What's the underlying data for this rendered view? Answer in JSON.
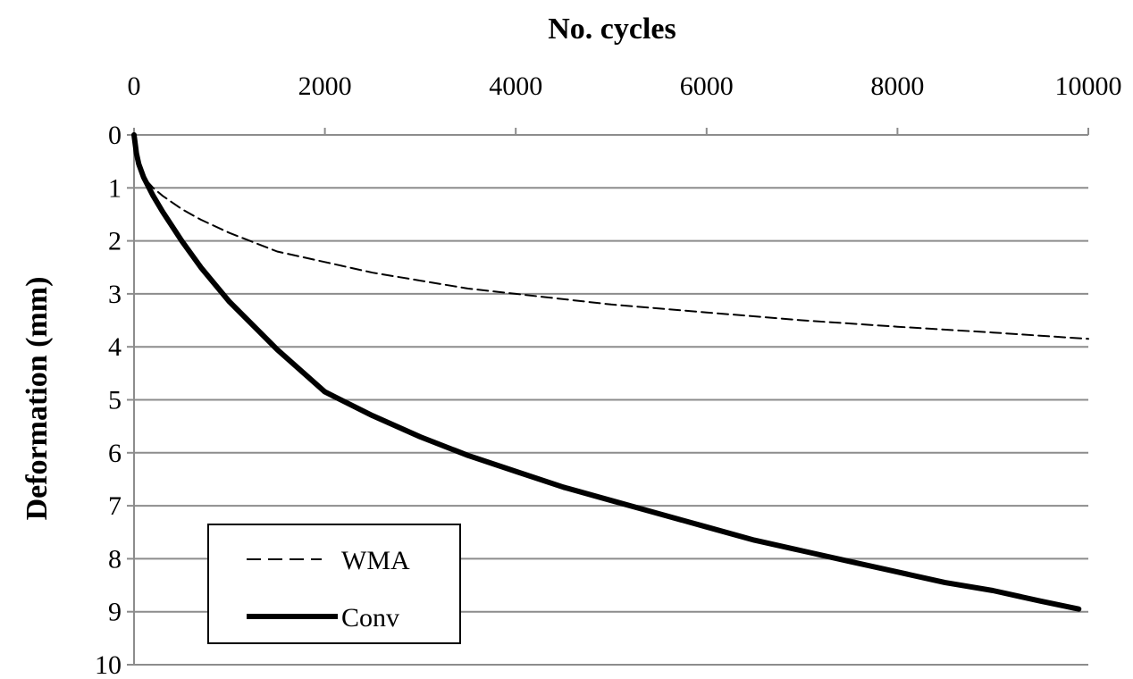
{
  "chart_data": {
    "type": "line",
    "xlabel": "No. cycles",
    "ylabel": "Deformation (mm)",
    "x_axis_position": "top",
    "y_axis_reversed": true,
    "xlim": [
      0,
      10000
    ],
    "ylim": [
      0,
      10
    ],
    "xticks": [
      0,
      2000,
      4000,
      6000,
      8000,
      10000
    ],
    "yticks": [
      0,
      1,
      2,
      3,
      4,
      5,
      6,
      7,
      8,
      9,
      10
    ],
    "grid": "horizontal",
    "legend": "bottom-left",
    "series": [
      {
        "name": "WMA",
        "style": "dashed",
        "color": "#000000",
        "x": [
          0,
          25,
          50,
          100,
          200,
          300,
          500,
          700,
          1000,
          1500,
          2000,
          2500,
          3000,
          3500,
          4000,
          5000,
          6000,
          7000,
          8000,
          9000,
          10000
        ],
        "y": [
          0,
          0.35,
          0.55,
          0.8,
          1.0,
          1.15,
          1.4,
          1.6,
          1.85,
          2.2,
          2.4,
          2.6,
          2.75,
          2.9,
          3.0,
          3.2,
          3.35,
          3.5,
          3.62,
          3.73,
          3.85
        ]
      },
      {
        "name": "Conv",
        "style": "solid-thick",
        "color": "#000000",
        "x": [
          0,
          25,
          50,
          100,
          200,
          300,
          500,
          700,
          1000,
          1500,
          2000,
          2500,
          3000,
          3500,
          4000,
          4500,
          5000,
          5500,
          6000,
          6500,
          7000,
          7500,
          8000,
          8500,
          9000,
          9500,
          9900
        ],
        "y": [
          0,
          0.35,
          0.55,
          0.8,
          1.15,
          1.45,
          2.0,
          2.5,
          3.15,
          4.05,
          4.85,
          5.3,
          5.7,
          6.05,
          6.35,
          6.65,
          6.9,
          7.15,
          7.4,
          7.65,
          7.85,
          8.05,
          8.25,
          8.45,
          8.6,
          8.8,
          8.95
        ]
      }
    ]
  }
}
